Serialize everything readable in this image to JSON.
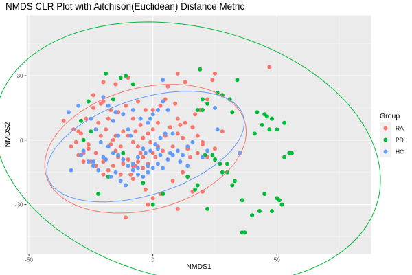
{
  "chart_data": {
    "type": "scatter",
    "title": "NMDS CLR Plot with Aitchison(Euclidean) Distance Metric",
    "xlabel": "NMDS1",
    "ylabel": "NMDS2",
    "xlim": [
      -51,
      88
    ],
    "ylim": [
      -53,
      58
    ],
    "x_ticks": [
      -50,
      0,
      50
    ],
    "x_tick_labels": [
      "-50",
      "0",
      "50"
    ],
    "y_ticks": [
      -30,
      0,
      30
    ],
    "y_tick_labels": [
      "-30",
      "0",
      "30"
    ],
    "grid": true,
    "legend": {
      "title": "Group",
      "position": "right"
    },
    "series": [
      {
        "name": "RA",
        "color": "#F8766D",
        "points": [
          [
            -36,
            9
          ],
          [
            -32,
            5
          ],
          [
            -30,
            4
          ],
          [
            -33,
            -3
          ],
          [
            -30,
            -7
          ],
          [
            -28,
            -6
          ],
          [
            -26,
            -4
          ],
          [
            -25,
            -10
          ],
          [
            -23,
            -6
          ],
          [
            -20,
            -10
          ],
          [
            -18,
            -14
          ],
          [
            -16,
            -12
          ],
          [
            -14,
            -8
          ],
          [
            -12,
            -11
          ],
          [
            -10,
            -9
          ],
          [
            -8,
            -12
          ],
          [
            -6,
            -10
          ],
          [
            -4,
            -8
          ],
          [
            -2,
            -11
          ],
          [
            0,
            -6
          ],
          [
            2,
            -3
          ],
          [
            4,
            -5
          ],
          [
            -27,
            10
          ],
          [
            -22,
            8
          ],
          [
            -19,
            5
          ],
          [
            -15,
            2
          ],
          [
            -12,
            4
          ],
          [
            -10,
            2
          ],
          [
            -8,
            -1
          ],
          [
            -6,
            -3
          ],
          [
            -4,
            1
          ],
          [
            -2,
            3
          ],
          [
            0,
            5
          ],
          [
            2,
            8
          ],
          [
            -24,
            15
          ],
          [
            -21,
            17
          ],
          [
            -17,
            14
          ],
          [
            -14,
            13
          ],
          [
            -11,
            16
          ],
          [
            -8,
            10
          ],
          [
            -5,
            7
          ],
          [
            -3,
            14
          ],
          [
            0,
            14
          ],
          [
            3,
            16
          ],
          [
            5,
            19
          ],
          [
            -24,
            21
          ],
          [
            -20,
            18
          ],
          [
            -15,
            26
          ],
          [
            -10,
            29
          ],
          [
            -6,
            18
          ],
          [
            -13,
            -16
          ],
          [
            -8,
            -18
          ],
          [
            -3,
            -23
          ],
          [
            0,
            -27
          ],
          [
            3,
            -25
          ],
          [
            -11,
            -36
          ],
          [
            -2,
            -30
          ],
          [
            10,
            -32
          ],
          [
            8,
            -19
          ],
          [
            12,
            -15
          ],
          [
            16,
            -24
          ],
          [
            20,
            -24
          ],
          [
            15,
            -8
          ],
          [
            18,
            -6
          ],
          [
            22,
            -8
          ],
          [
            25,
            -4
          ],
          [
            28,
            4
          ],
          [
            10,
            10
          ],
          [
            13,
            8
          ],
          [
            16,
            6
          ],
          [
            18,
            2
          ],
          [
            20,
            -2
          ],
          [
            10,
            3
          ],
          [
            12,
            1
          ],
          [
            8,
            -3
          ],
          [
            5,
            2
          ],
          [
            7,
            6
          ],
          [
            -29,
            3
          ],
          [
            -31,
            -1
          ],
          [
            -17,
            -2
          ],
          [
            -15,
            -5
          ],
          [
            -13,
            -3
          ],
          [
            -7,
            4
          ],
          [
            -5,
            -6
          ],
          [
            -1,
            -1
          ],
          [
            1,
            -8
          ],
          [
            -18,
            10
          ],
          [
            -26,
            -2
          ],
          [
            47,
            34
          ],
          [
            24,
            28
          ],
          [
            25,
            31
          ],
          [
            20,
            -1
          ],
          [
            14,
            -4
          ],
          [
            17,
            12
          ],
          [
            19,
            14
          ],
          [
            22,
            19
          ],
          [
            11,
            7
          ],
          [
            9,
            17
          ],
          [
            10,
            31
          ],
          [
            13,
            27
          ],
          [
            6,
            25
          ],
          [
            -20,
            27
          ],
          [
            -28,
            -10
          ],
          [
            -23,
            -12
          ],
          [
            -20,
            -16
          ],
          [
            -9,
            -16
          ],
          [
            -7,
            -12
          ],
          [
            -4,
            -13
          ],
          [
            -16,
            0
          ],
          [
            -21,
            2
          ]
        ]
      },
      {
        "name": "PD",
        "color": "#00BA38",
        "points": [
          [
            -19,
            31
          ],
          [
            -13,
            29
          ],
          [
            -11,
            30
          ],
          [
            -8,
            26
          ],
          [
            -16,
            19
          ],
          [
            -26,
            18
          ],
          [
            -29,
            9
          ],
          [
            -28,
            0
          ],
          [
            -25,
            4
          ],
          [
            -14,
            -7
          ],
          [
            -12,
            -6
          ],
          [
            -18,
            -17
          ],
          [
            -22,
            -25
          ],
          [
            -4,
            -20
          ],
          [
            0,
            -30
          ],
          [
            4,
            -25
          ],
          [
            14,
            -17
          ],
          [
            17,
            -23
          ],
          [
            18,
            -21
          ],
          [
            19,
            33
          ],
          [
            26,
            22
          ],
          [
            31,
            19
          ],
          [
            34,
            28
          ],
          [
            28,
            21
          ],
          [
            20,
            14
          ],
          [
            22,
            17
          ],
          [
            24,
            -7
          ],
          [
            27,
            -11
          ],
          [
            28,
            -15
          ],
          [
            33,
            -19
          ],
          [
            36,
            -28
          ],
          [
            37,
            -43
          ],
          [
            40,
            -35
          ],
          [
            45,
            -25
          ],
          [
            48,
            -33
          ],
          [
            50,
            -27
          ],
          [
            52,
            -30
          ],
          [
            53,
            -8
          ],
          [
            55,
            -6
          ],
          [
            41,
            3
          ],
          [
            44,
            7
          ],
          [
            47,
            5
          ],
          [
            50,
            5
          ],
          [
            48,
            10
          ],
          [
            53,
            8
          ],
          [
            42,
            13
          ],
          [
            45,
            12
          ],
          [
            46,
            11
          ],
          [
            56,
            -6
          ],
          [
            51,
            -28
          ],
          [
            43,
            -33
          ],
          [
            36,
            -43
          ],
          [
            22,
            -32
          ],
          [
            32,
            -21
          ],
          [
            30,
            -15
          ],
          [
            32,
            13
          ],
          [
            25,
            -9
          ],
          [
            30,
            -11
          ],
          [
            20,
            19
          ],
          [
            18,
            14
          ],
          [
            21,
            -7
          ]
        ]
      },
      {
        "name": "HC",
        "color": "#619CFF",
        "points": [
          [
            -34,
            13
          ],
          [
            -30,
            16
          ],
          [
            -25,
            10
          ],
          [
            -23,
            5
          ],
          [
            -21,
            -1
          ],
          [
            -18,
            -3
          ],
          [
            -16,
            -6
          ],
          [
            -14,
            -7
          ],
          [
            -12,
            -9
          ],
          [
            -10,
            -12
          ],
          [
            -8,
            -14
          ],
          [
            -6,
            -16
          ],
          [
            -4,
            -17
          ],
          [
            -2,
            -15
          ],
          [
            0,
            -13
          ],
          [
            2,
            -11
          ],
          [
            4,
            -13
          ],
          [
            6,
            -9
          ],
          [
            8,
            -7
          ],
          [
            10,
            -5
          ],
          [
            12,
            -7
          ],
          [
            14,
            -3
          ],
          [
            16,
            -1
          ],
          [
            -28,
            -5
          ],
          [
            -26,
            -10
          ],
          [
            -24,
            -12
          ],
          [
            -22,
            -14
          ],
          [
            -20,
            -8
          ],
          [
            -19,
            -9
          ],
          [
            -17,
            -17
          ],
          [
            -15,
            -15
          ],
          [
            -13,
            -19
          ],
          [
            -11,
            -21
          ],
          [
            -8,
            -11
          ],
          [
            -6,
            -8
          ],
          [
            -3,
            -6
          ],
          [
            -1,
            -5
          ],
          [
            1,
            -2
          ],
          [
            3,
            1
          ],
          [
            5,
            3
          ],
          [
            -18,
            16
          ],
          [
            -15,
            13
          ],
          [
            -12,
            12
          ],
          [
            -8,
            14
          ],
          [
            -5,
            10
          ],
          [
            -2,
            8
          ],
          [
            0,
            12
          ],
          [
            2,
            14
          ],
          [
            4,
            18
          ],
          [
            6,
            14
          ],
          [
            -24,
            -10
          ],
          [
            -29,
            -7
          ],
          [
            -33,
            -14
          ],
          [
            -16,
            9
          ],
          [
            -9,
            2
          ],
          [
            -4,
            -4
          ],
          [
            2,
            -4
          ],
          [
            7,
            -6
          ],
          [
            11,
            -10
          ],
          [
            14,
            -12
          ],
          [
            20,
            -8
          ],
          [
            22,
            -5
          ],
          [
            26,
            5
          ],
          [
            35,
            -6
          ],
          [
            25,
            15
          ],
          [
            8,
            3
          ],
          [
            4,
            28
          ],
          [
            -1,
            10
          ],
          [
            -20,
            20
          ],
          [
            -6,
            -13
          ],
          [
            -10,
            5
          ],
          [
            -14,
            2
          ],
          [
            3,
            -7
          ],
          [
            -2,
            -12
          ]
        ]
      }
    ],
    "ellipses": [
      {
        "series": "RA",
        "color": "#F8766D",
        "center": [
          -3,
          -4
        ],
        "semi_axes": [
          42,
          28
        ],
        "angle_deg": 20
      },
      {
        "series": "PD",
        "color": "#00BA38",
        "center": [
          14,
          -6
        ],
        "semi_axes": [
          80,
          58
        ],
        "angle_deg": -20
      },
      {
        "series": "HC",
        "color": "#619CFF",
        "center": [
          -3,
          -3
        ],
        "semi_axes": [
          42,
          22
        ],
        "angle_deg": 22
      }
    ]
  }
}
